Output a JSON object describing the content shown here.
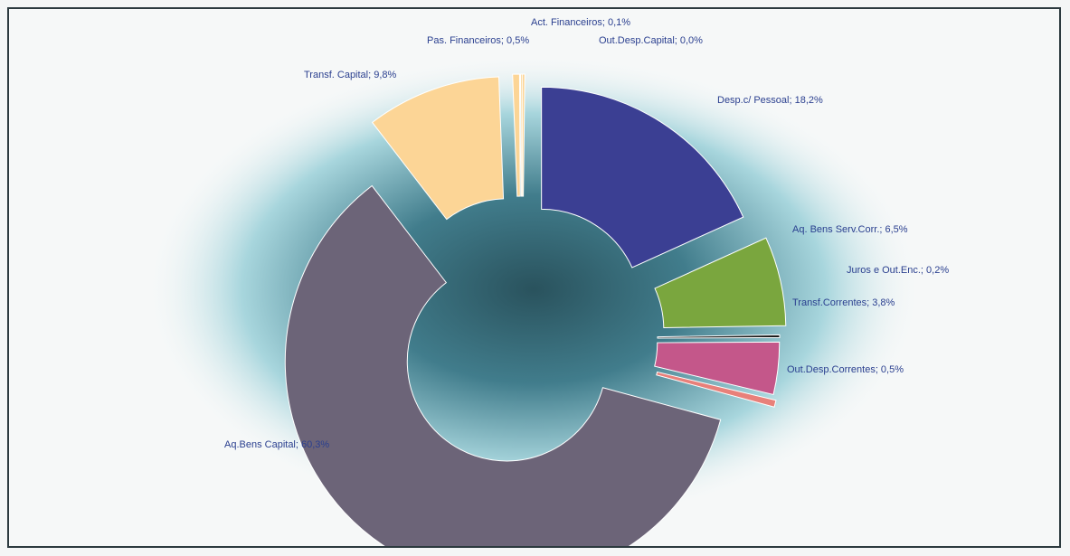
{
  "chart_data": {
    "type": "pie",
    "donut": true,
    "exploded": true,
    "slices": [
      {
        "label": "Desp.c/ Pessoal; 18,2%",
        "name": "Desp.c/ Pessoal",
        "value": 18.2,
        "color": "#3b3f93"
      },
      {
        "label": "Aq. Bens Serv.Corr.; 6,5%",
        "name": "Aq. Bens Serv.Corr.",
        "value": 6.5,
        "color": "#7aa63e"
      },
      {
        "label": "Juros e Out.Enc.; 0,2%",
        "name": "Juros e Out.Enc.",
        "value": 0.2,
        "color": "#1c1c1c"
      },
      {
        "label": "Transf.Correntes; 3,8%",
        "name": "Transf.Correntes",
        "value": 3.8,
        "color": "#c4578a"
      },
      {
        "label": "Out.Desp.Correntes; 0,5%",
        "name": "Out.Desp.Correntes",
        "value": 0.5,
        "color": "#e8807a"
      },
      {
        "label": "Aq.Bens Capital; 60,3%",
        "name": "Aq.Bens Capital",
        "value": 60.3,
        "color": "#6c6478"
      },
      {
        "label": "Transf. Capital; 9,8%",
        "name": "Transf. Capital",
        "value": 9.8,
        "color": "#fcd596"
      },
      {
        "label": "Pas. Financeiros; 0,5%",
        "name": "Pas. Financeiros",
        "value": 0.5,
        "color": "#fcd596"
      },
      {
        "label": "Act. Financeiros; 0,1%",
        "name": "Act. Financeiros",
        "value": 0.1,
        "color": "#fcd596"
      },
      {
        "label": "Out.Desp.Capital; 0,0%",
        "name": "Out.Desp.Capital",
        "value": 0.0,
        "color": "#fcd596"
      }
    ]
  }
}
